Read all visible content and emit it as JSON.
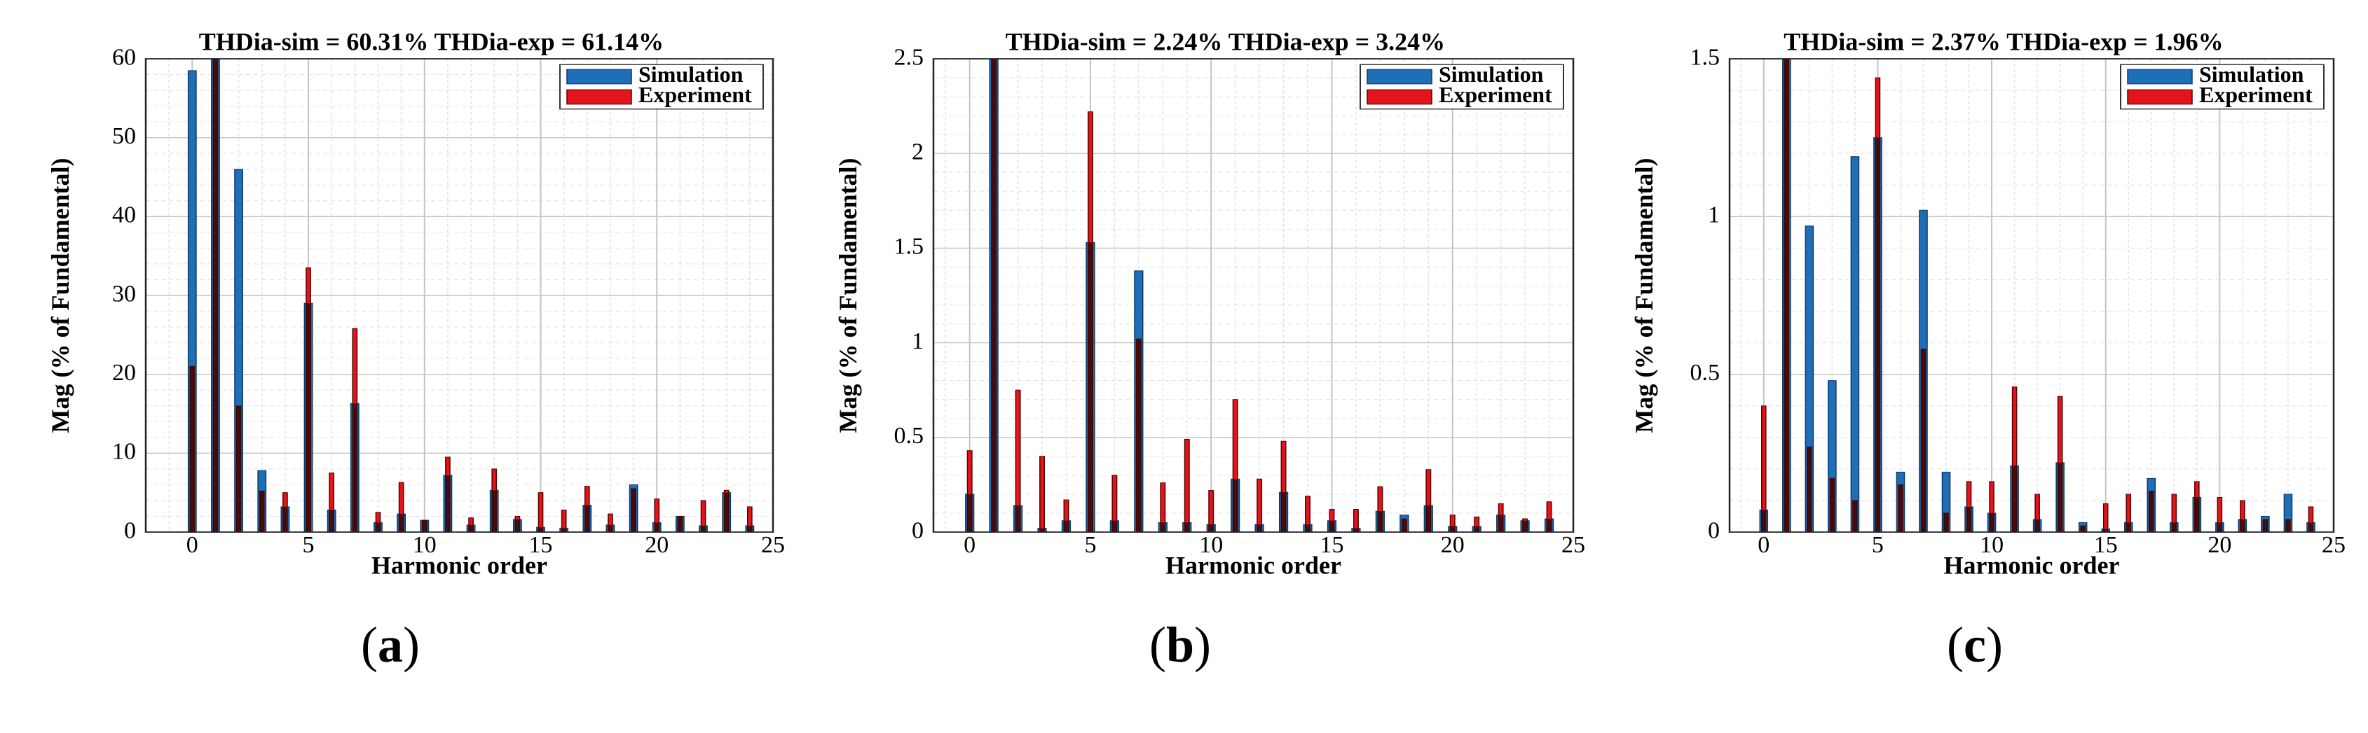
{
  "colors": {
    "simulation": "#1f6fb8",
    "experiment": "#e3141b"
  },
  "legend": {
    "sim": "Simulation",
    "exp": "Experiment",
    "placement": "top-right"
  },
  "panels": [
    {
      "label_open": "(",
      "label_letter": "a",
      "label_close": ")"
    },
    {
      "label_open": "(",
      "label_letter": "b",
      "label_close": ")"
    },
    {
      "label_open": "(",
      "label_letter": "c",
      "label_close": ")"
    }
  ],
  "chart_data": [
    {
      "type": "bar",
      "title": "THDia-sim = 60.31%    THDia-exp = 61.14%",
      "xlabel": "Harmonic order",
      "ylabel": "Mag (% of Fundamental)",
      "xlim": [
        -2,
        25
      ],
      "ylim": [
        0,
        60
      ],
      "xticks": [
        0,
        5,
        10,
        15,
        20,
        25
      ],
      "yticks": [
        0,
        10,
        20,
        30,
        40,
        50,
        60
      ],
      "grid": true,
      "x": [
        0,
        1,
        2,
        3,
        4,
        5,
        6,
        7,
        8,
        9,
        10,
        11,
        12,
        13,
        14,
        15,
        16,
        17,
        18,
        19,
        20,
        21,
        22,
        23,
        24
      ],
      "series": [
        {
          "name": "Simulation",
          "values": [
            58.5,
            60,
            46,
            7.8,
            3.2,
            29,
            2.8,
            16.3,
            1.2,
            2.3,
            1.5,
            7.2,
            0.9,
            5.3,
            1.6,
            0.6,
            0.5,
            3.4,
            0.9,
            6,
            1.2,
            2,
            0.8,
            5,
            0.8
          ]
        },
        {
          "name": "Experiment",
          "values": [
            21,
            60,
            16,
            5.2,
            5,
            33.5,
            7.5,
            25.8,
            2.5,
            6.3,
            1.5,
            9.5,
            1.8,
            8,
            2,
            5,
            2.8,
            5.8,
            2.3,
            5.5,
            4.2,
            2,
            4,
            5.3,
            3.2
          ]
        }
      ]
    },
    {
      "type": "bar",
      "title": "THDia-sim = 2.24%    THDia-exp = 3.24%",
      "xlabel": "Harmonic order",
      "ylabel": "Mag (% of Fundamental)",
      "xlim": [
        -1.5,
        25
      ],
      "ylim": [
        0,
        2.5
      ],
      "xticks": [
        0,
        5,
        10,
        15,
        20,
        25
      ],
      "yticks": [
        0,
        0.5,
        1,
        1.5,
        2,
        2.5
      ],
      "grid": true,
      "x": [
        0,
        1,
        2,
        3,
        4,
        5,
        6,
        7,
        8,
        9,
        10,
        11,
        12,
        13,
        14,
        15,
        16,
        17,
        18,
        19,
        20,
        21,
        22,
        23,
        24
      ],
      "series": [
        {
          "name": "Simulation",
          "values": [
            0.2,
            2.5,
            0.14,
            0.02,
            0.06,
            1.53,
            0.06,
            1.38,
            0.05,
            0.05,
            0.04,
            0.28,
            0.04,
            0.21,
            0.04,
            0.06,
            0.02,
            0.11,
            0.09,
            0.14,
            0.03,
            0.03,
            0.09,
            0.06,
            0.07
          ]
        },
        {
          "name": "Experiment",
          "values": [
            0.43,
            2.5,
            0.75,
            0.4,
            0.17,
            2.22,
            0.3,
            1.02,
            0.26,
            0.49,
            0.22,
            0.7,
            0.28,
            0.48,
            0.19,
            0.12,
            0.12,
            0.24,
            0.07,
            0.33,
            0.09,
            0.08,
            0.15,
            0.07,
            0.16
          ]
        }
      ]
    },
    {
      "type": "bar",
      "title": "THDia-sim = 2.37%    THDia-exp = 1.96%",
      "xlabel": "Harmonic order",
      "ylabel": "Mag (% of Fundamental)",
      "xlim": [
        -1.5,
        25
      ],
      "ylim": [
        0,
        1.5
      ],
      "xticks": [
        0,
        5,
        10,
        15,
        20,
        25
      ],
      "yticks": [
        0,
        0.5,
        1,
        1.5
      ],
      "grid": true,
      "x": [
        0,
        1,
        2,
        3,
        4,
        5,
        6,
        7,
        8,
        9,
        10,
        11,
        12,
        13,
        14,
        15,
        16,
        17,
        18,
        19,
        20,
        21,
        22,
        23,
        24
      ],
      "series": [
        {
          "name": "Simulation",
          "values": [
            0.07,
            1.5,
            0.97,
            0.48,
            1.19,
            1.25,
            0.19,
            1.02,
            0.19,
            0.08,
            0.06,
            0.21,
            0.04,
            0.22,
            0.03,
            0.01,
            0.03,
            0.17,
            0.03,
            0.11,
            0.03,
            0.04,
            0.05,
            0.12,
            0.03
          ]
        },
        {
          "name": "Experiment",
          "values": [
            0.4,
            1.5,
            0.27,
            0.17,
            0.1,
            1.44,
            0.15,
            0.58,
            0.06,
            0.16,
            0.16,
            0.46,
            0.12,
            0.43,
            0.02,
            0.09,
            0.12,
            0.13,
            0.12,
            0.16,
            0.11,
            0.1,
            0.04,
            0.04,
            0.08
          ]
        }
      ]
    }
  ]
}
